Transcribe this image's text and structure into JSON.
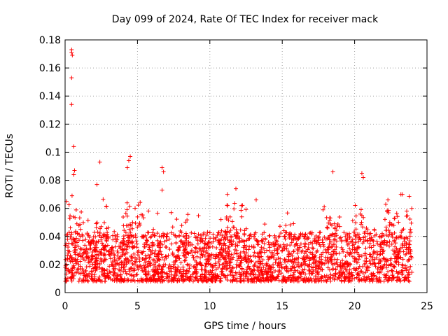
{
  "chart_data": {
    "type": "scatter",
    "title": "Day 099 of 2024, Rate Of TEC Index for receiver mack",
    "xlabel": "GPS time / hours",
    "ylabel": "ROTI / TECUs",
    "xlim": [
      0,
      25
    ],
    "ylim": [
      0,
      0.18
    ],
    "x_ticks": [
      0,
      5,
      10,
      15,
      20,
      25
    ],
    "y_ticks": [
      0,
      0.02,
      0.04,
      0.06,
      0.08,
      0.1,
      0.12,
      0.14,
      0.16,
      0.18
    ],
    "x_tick_labels": [
      "0",
      "5",
      "10",
      "15",
      "20",
      "25"
    ],
    "y_tick_labels": [
      "0",
      "0.02",
      "0.04",
      "0.06",
      "0.08",
      "0.1",
      "0.12",
      "0.14",
      "0.16",
      "0.18"
    ],
    "grid": true,
    "marker": "+",
    "color": "#ff0000",
    "series": [
      {
        "name": "ROTI",
        "notable_points": [
          {
            "x": 0.45,
            "y": 0.173
          },
          {
            "x": 0.45,
            "y": 0.171
          },
          {
            "x": 0.5,
            "y": 0.169
          },
          {
            "x": 0.45,
            "y": 0.153
          },
          {
            "x": 0.45,
            "y": 0.134
          },
          {
            "x": 0.6,
            "y": 0.104
          },
          {
            "x": 0.65,
            "y": 0.087
          },
          {
            "x": 0.6,
            "y": 0.084
          },
          {
            "x": 2.4,
            "y": 0.093
          },
          {
            "x": 4.5,
            "y": 0.097
          },
          {
            "x": 4.4,
            "y": 0.094
          },
          {
            "x": 4.3,
            "y": 0.089
          },
          {
            "x": 6.7,
            "y": 0.089
          },
          {
            "x": 6.8,
            "y": 0.086
          },
          {
            "x": 6.7,
            "y": 0.073
          },
          {
            "x": 11.8,
            "y": 0.074
          },
          {
            "x": 18.5,
            "y": 0.086
          },
          {
            "x": 20.5,
            "y": 0.085
          },
          {
            "x": 20.6,
            "y": 0.082
          },
          {
            "x": 0.1,
            "y": 0.065
          },
          {
            "x": 2.2,
            "y": 0.077
          },
          {
            "x": 13.2,
            "y": 0.066
          },
          {
            "x": 22.3,
            "y": 0.066
          },
          {
            "x": 23.6,
            "y": 0.058
          }
        ],
        "baseline_band": {
          "x_range": [
            0,
            24
          ],
          "typical_min": 0.008,
          "typical_max": 0.035
        }
      }
    ]
  }
}
